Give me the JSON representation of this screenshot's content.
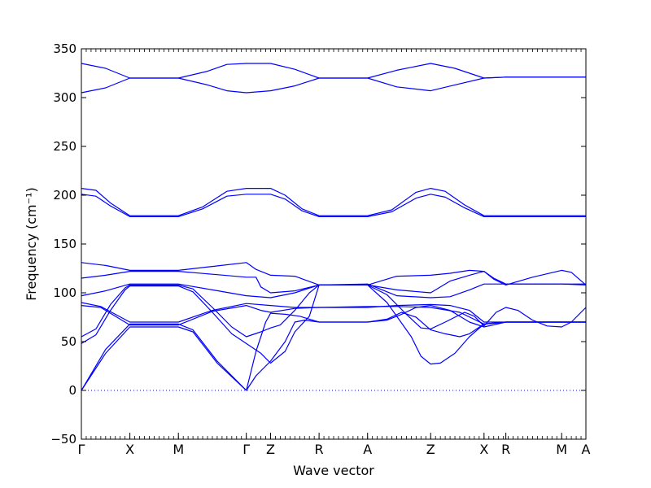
{
  "chart_data": {
    "type": "line",
    "xlabel": "Wave vector",
    "ylabel": "Frequency (cm⁻¹)",
    "ylim": [
      -50,
      350
    ],
    "yticks": [
      -50,
      0,
      50,
      100,
      150,
      200,
      250,
      300,
      350
    ],
    "xlim": [
      0,
      10.4
    ],
    "xticks": [
      {
        "label": "Γ",
        "x": 0
      },
      {
        "label": "X",
        "x": 1.0
      },
      {
        "label": "M",
        "x": 2.0
      },
      {
        "label": "Γ",
        "x": 3.4
      },
      {
        "label": "Z",
        "x": 3.9
      },
      {
        "label": "R",
        "x": 4.9
      },
      {
        "label": "A",
        "x": 5.9
      },
      {
        "label": "Z",
        "x": 7.2
      },
      {
        "label": "X",
        "x": 8.3
      },
      {
        "label": "R",
        "x": 8.75
      },
      {
        "label": "M",
        "x": 9.9
      },
      {
        "label": "A",
        "x": 10.4
      }
    ],
    "zero_line": {
      "y": 0,
      "style": "dotted",
      "color": "#0000ff"
    },
    "line_color": "#0000ff",
    "grid": false,
    "series": [
      {
        "points": [
          [
            0,
            335
          ],
          [
            0.5,
            330
          ],
          [
            1.0,
            320
          ],
          [
            2.0,
            320
          ],
          [
            2.6,
            327
          ],
          [
            3.0,
            334
          ],
          [
            3.4,
            335
          ],
          [
            3.9,
            335
          ],
          [
            4.4,
            329
          ],
          [
            4.9,
            320
          ],
          [
            5.9,
            320
          ],
          [
            6.5,
            328
          ],
          [
            7.2,
            335
          ],
          [
            7.7,
            330
          ],
          [
            8.3,
            320
          ],
          [
            8.75,
            321
          ],
          [
            10.4,
            321
          ]
        ]
      },
      {
        "points": [
          [
            0,
            305
          ],
          [
            0.5,
            310
          ],
          [
            1.0,
            320
          ],
          [
            2.0,
            320
          ],
          [
            2.6,
            313
          ],
          [
            3.0,
            307
          ],
          [
            3.4,
            305
          ],
          [
            3.9,
            307
          ],
          [
            4.4,
            312
          ],
          [
            4.9,
            320
          ],
          [
            5.9,
            320
          ],
          [
            6.5,
            311
          ],
          [
            7.2,
            307
          ],
          [
            7.7,
            313
          ],
          [
            8.3,
            320
          ],
          [
            8.75,
            321
          ],
          [
            10.4,
            321
          ]
        ]
      },
      {
        "points": [
          [
            0,
            207
          ],
          [
            0.3,
            205
          ],
          [
            0.6,
            192
          ],
          [
            1.0,
            179
          ],
          [
            2.0,
            179
          ],
          [
            2.5,
            188
          ],
          [
            3.0,
            204
          ],
          [
            3.4,
            207
          ],
          [
            3.9,
            207
          ],
          [
            4.2,
            200
          ],
          [
            4.55,
            186
          ],
          [
            4.9,
            179
          ],
          [
            5.9,
            179
          ],
          [
            6.4,
            185
          ],
          [
            6.9,
            203
          ],
          [
            7.2,
            207
          ],
          [
            7.5,
            204
          ],
          [
            7.9,
            190
          ],
          [
            8.3,
            179
          ],
          [
            10.4,
            179
          ]
        ]
      },
      {
        "points": [
          [
            0,
            201
          ],
          [
            0.3,
            199
          ],
          [
            0.6,
            189
          ],
          [
            1.0,
            178
          ],
          [
            2.0,
            178
          ],
          [
            2.5,
            186
          ],
          [
            3.0,
            199
          ],
          [
            3.4,
            201
          ],
          [
            3.9,
            201
          ],
          [
            4.2,
            196
          ],
          [
            4.55,
            184
          ],
          [
            4.9,
            178
          ],
          [
            5.9,
            178
          ],
          [
            6.4,
            183
          ],
          [
            6.9,
            197
          ],
          [
            7.2,
            201
          ],
          [
            7.5,
            198
          ],
          [
            7.9,
            187
          ],
          [
            8.3,
            178
          ],
          [
            10.4,
            178
          ]
        ]
      },
      {
        "points": [
          [
            0,
            131
          ],
          [
            0.5,
            128
          ],
          [
            1.0,
            123
          ],
          [
            2.0,
            123
          ],
          [
            2.7,
            127
          ],
          [
            3.4,
            131
          ],
          [
            3.6,
            124
          ],
          [
            3.9,
            118
          ],
          [
            4.4,
            117
          ],
          [
            4.9,
            108
          ],
          [
            5.9,
            108
          ],
          [
            6.5,
            117
          ],
          [
            7.2,
            118
          ],
          [
            7.6,
            120
          ],
          [
            8.0,
            123
          ],
          [
            8.3,
            122
          ],
          [
            8.5,
            114
          ],
          [
            8.75,
            108
          ],
          [
            9.3,
            116
          ],
          [
            9.9,
            123
          ],
          [
            10.1,
            121
          ],
          [
            10.4,
            108
          ]
        ]
      },
      {
        "points": [
          [
            0,
            115
          ],
          [
            0.5,
            118
          ],
          [
            1.0,
            122
          ],
          [
            2.0,
            122
          ],
          [
            2.7,
            119
          ],
          [
            3.4,
            116
          ],
          [
            3.6,
            116
          ],
          [
            3.7,
            106
          ],
          [
            3.9,
            100
          ],
          [
            4.4,
            102
          ],
          [
            4.9,
            108
          ],
          [
            5.9,
            108
          ],
          [
            6.5,
            103
          ],
          [
            7.2,
            100
          ],
          [
            7.6,
            112
          ],
          [
            8.0,
            118
          ],
          [
            8.3,
            122
          ],
          [
            8.5,
            115
          ],
          [
            8.75,
            109
          ],
          [
            9.9,
            109
          ],
          [
            10.4,
            108
          ]
        ]
      },
      {
        "points": [
          [
            0,
            97
          ],
          [
            0.5,
            102
          ],
          [
            1.0,
            109
          ],
          [
            2.0,
            109
          ],
          [
            2.7,
            103
          ],
          [
            3.4,
            97
          ],
          [
            3.9,
            95
          ],
          [
            4.4,
            100
          ],
          [
            4.9,
            108
          ],
          [
            5.9,
            109
          ],
          [
            6.5,
            97
          ],
          [
            7.2,
            95
          ],
          [
            7.6,
            96
          ],
          [
            8.0,
            103
          ],
          [
            8.3,
            109
          ],
          [
            10.4,
            109
          ]
        ]
      },
      {
        "points": [
          [
            0,
            90
          ],
          [
            0.4,
            86
          ],
          [
            1.0,
            70
          ],
          [
            2.0,
            70
          ],
          [
            2.7,
            82
          ],
          [
            3.4,
            89
          ],
          [
            3.9,
            87
          ],
          [
            4.4,
            85
          ],
          [
            4.9,
            85
          ],
          [
            5.9,
            85
          ],
          [
            6.5,
            87
          ],
          [
            7.2,
            88
          ],
          [
            7.6,
            87
          ],
          [
            8.0,
            82
          ],
          [
            8.3,
            70
          ],
          [
            8.75,
            70
          ],
          [
            10.4,
            70
          ]
        ]
      },
      {
        "points": [
          [
            0,
            87
          ],
          [
            0.4,
            85
          ],
          [
            1.0,
            67
          ],
          [
            2.0,
            67
          ],
          [
            2.7,
            81
          ],
          [
            3.4,
            87
          ],
          [
            3.7,
            82
          ],
          [
            3.9,
            80
          ],
          [
            4.4,
            84
          ],
          [
            4.9,
            85
          ],
          [
            5.9,
            86
          ],
          [
            6.5,
            86
          ],
          [
            7.2,
            85
          ],
          [
            7.8,
            80
          ],
          [
            8.3,
            68
          ],
          [
            8.75,
            70
          ],
          [
            10.4,
            70
          ]
        ]
      },
      {
        "points": [
          [
            0,
            55
          ],
          [
            0.3,
            63
          ],
          [
            0.6,
            88
          ],
          [
            0.9,
            105
          ],
          [
            1.0,
            108
          ],
          [
            2.0,
            108
          ],
          [
            2.3,
            104
          ],
          [
            2.7,
            85
          ],
          [
            3.1,
            65
          ],
          [
            3.4,
            55
          ],
          [
            3.7,
            60
          ],
          [
            3.9,
            64
          ],
          [
            4.1,
            67
          ],
          [
            4.4,
            82
          ],
          [
            4.7,
            100
          ],
          [
            4.9,
            108
          ],
          [
            5.9,
            108
          ],
          [
            6.3,
            98
          ],
          [
            6.7,
            78
          ],
          [
            7.0,
            64
          ],
          [
            7.2,
            63
          ],
          [
            7.5,
            70
          ],
          [
            7.9,
            80
          ],
          [
            8.1,
            76
          ],
          [
            8.3,
            66
          ],
          [
            8.55,
            80
          ],
          [
            8.75,
            85
          ],
          [
            9.0,
            82
          ],
          [
            9.3,
            72
          ],
          [
            9.6,
            66
          ],
          [
            9.9,
            65
          ],
          [
            10.1,
            70
          ],
          [
            10.4,
            85
          ]
        ]
      },
      {
        "points": [
          [
            0,
            48
          ],
          [
            0.3,
            57
          ],
          [
            0.6,
            82
          ],
          [
            0.9,
            103
          ],
          [
            1.0,
            107
          ],
          [
            2.0,
            107
          ],
          [
            2.3,
            101
          ],
          [
            2.7,
            80
          ],
          [
            3.1,
            58
          ],
          [
            3.4,
            48
          ],
          [
            3.7,
            38
          ],
          [
            3.9,
            28
          ],
          [
            4.2,
            40
          ],
          [
            4.4,
            60
          ],
          [
            4.7,
            76
          ],
          [
            4.9,
            108
          ],
          [
            5.9,
            108
          ],
          [
            6.3,
            90
          ],
          [
            6.8,
            55
          ],
          [
            7.0,
            35
          ],
          [
            7.2,
            27
          ],
          [
            7.4,
            28
          ],
          [
            7.7,
            38
          ],
          [
            8.0,
            55
          ],
          [
            8.3,
            68
          ],
          [
            8.75,
            70
          ],
          [
            10.4,
            70
          ]
        ]
      },
      {
        "points": [
          [
            0,
            0
          ],
          [
            0.5,
            42
          ],
          [
            1.0,
            68
          ],
          [
            2.0,
            68
          ],
          [
            2.3,
            62
          ],
          [
            2.8,
            30
          ],
          [
            3.4,
            0
          ],
          [
            3.6,
            15
          ],
          [
            3.9,
            30
          ],
          [
            4.2,
            50
          ],
          [
            4.4,
            70
          ],
          [
            4.6,
            72
          ],
          [
            4.9,
            70
          ],
          [
            5.9,
            70
          ],
          [
            6.3,
            73
          ],
          [
            6.6,
            80
          ],
          [
            6.9,
            75
          ],
          [
            7.2,
            62
          ],
          [
            7.5,
            58
          ],
          [
            7.8,
            55
          ],
          [
            8.0,
            58
          ],
          [
            8.3,
            68
          ],
          [
            8.75,
            70
          ],
          [
            10.4,
            70
          ]
        ]
      },
      {
        "points": [
          [
            0,
            0
          ],
          [
            0.5,
            38
          ],
          [
            1.0,
            65
          ],
          [
            2.0,
            65
          ],
          [
            2.3,
            60
          ],
          [
            2.8,
            28
          ],
          [
            3.4,
            0
          ],
          [
            3.6,
            40
          ],
          [
            3.8,
            70
          ],
          [
            3.9,
            79
          ],
          [
            4.2,
            78
          ],
          [
            4.5,
            76
          ],
          [
            4.9,
            70
          ],
          [
            5.9,
            70
          ],
          [
            6.3,
            72
          ],
          [
            6.6,
            78
          ],
          [
            6.9,
            85
          ],
          [
            7.2,
            87
          ],
          [
            7.6,
            82
          ],
          [
            8.0,
            70
          ],
          [
            8.3,
            65
          ],
          [
            8.75,
            70
          ],
          [
            10.4,
            70
          ]
        ]
      }
    ]
  }
}
